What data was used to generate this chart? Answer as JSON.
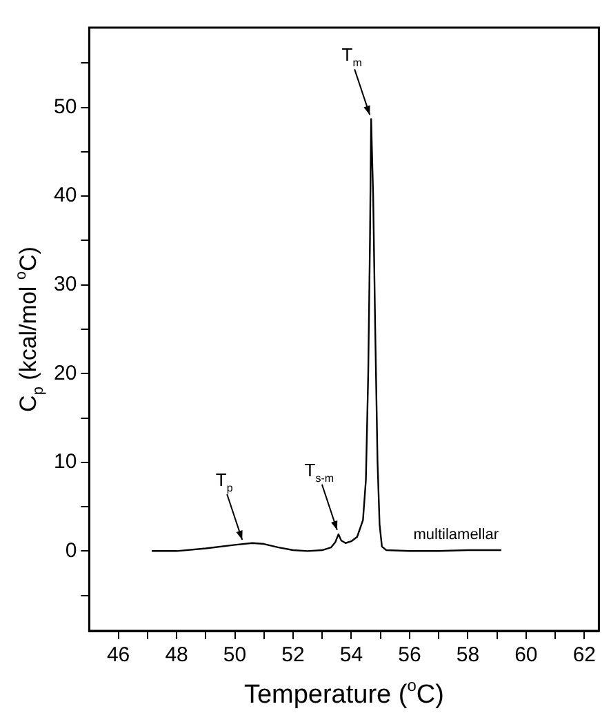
{
  "chart_data": {
    "type": "line",
    "xlabel": "Temperature ($^{o}$C)",
    "ylabel": "C$_{p}$ (kcal/mol $^{o}$C)",
    "x": [
      47.15,
      48,
      49,
      50,
      50.6,
      51,
      51.5,
      52,
      52.5,
      53,
      53.3,
      53.45,
      53.56,
      53.65,
      53.8,
      54.0,
      54.2,
      54.4,
      54.5,
      54.58,
      54.64,
      54.68,
      54.75,
      54.82,
      54.9,
      54.97,
      55.05,
      55.2,
      56,
      57,
      58,
      59.15
    ],
    "series": [
      {
        "name": "multilamellar",
        "color": "#000000",
        "values": [
          0,
          0,
          0.3,
          0.7,
          0.9,
          0.8,
          0.4,
          0.1,
          0,
          0.1,
          0.4,
          1.0,
          1.9,
          1.2,
          0.9,
          1.1,
          1.6,
          3.5,
          8,
          20,
          35,
          48.7,
          40,
          25,
          10,
          3,
          0.5,
          0.1,
          0,
          0,
          0.1,
          0.1
        ]
      }
    ],
    "xlim": [
      45,
      62.5
    ],
    "ylim": [
      -9,
      59
    ],
    "xticks": [
      46,
      {
        "value": 47,
        "label": null
      },
      48,
      {
        "value": 49,
        "label": null
      },
      50,
      {
        "value": 51,
        "label": null
      },
      52,
      {
        "value": 53,
        "label": null
      },
      54,
      {
        "value": 55,
        "label": null
      },
      56,
      {
        "value": 57,
        "label": null
      },
      58,
      {
        "value": 59,
        "label": null
      },
      60,
      {
        "value": 61,
        "label": null
      },
      62
    ],
    "yticks": [
      {
        "value": -5,
        "label": null
      },
      0,
      {
        "value": 5,
        "label": null
      },
      10,
      {
        "value": 15,
        "label": null
      },
      20,
      {
        "value": 25,
        "label": null
      },
      30,
      {
        "value": 35,
        "label": null
      },
      40,
      {
        "value": 45,
        "label": null
      },
      50,
      {
        "value": 55,
        "label": null
      }
    ],
    "annotations": [
      {
        "text": "T$_{p}$",
        "x": 50.3,
        "y": 0.8
      },
      {
        "text": "T$_{s-m}$",
        "x": 53.56,
        "y": 1.9
      },
      {
        "text": "T$_{m}$",
        "x": 54.68,
        "y": 48.7
      }
    ],
    "grid": false,
    "legend": false,
    "marker": "none",
    "line_style": "solid"
  }
}
